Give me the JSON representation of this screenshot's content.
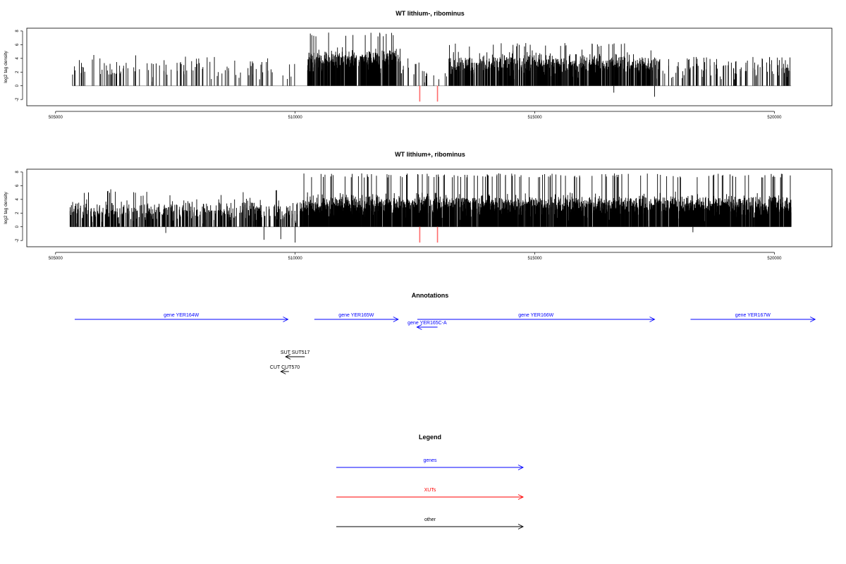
{
  "colors": {
    "gene": "#0000ff",
    "xut": "#ff0000",
    "other": "#000000",
    "negative_highlight": "#ff6b6b",
    "bar": "#000000",
    "baseline": "#9a9a9a"
  },
  "chart_data": [
    {
      "type": "bar",
      "title": "WT lithium-, ribominus",
      "ylabel": "log2 tag density",
      "xlim": [
        504400,
        521200
      ],
      "ylim": [
        -2.5,
        8.2
      ],
      "x_ticks": [
        "505000",
        "510000",
        "515000",
        "520000"
      ],
      "y_ticks": [
        "-2",
        "0",
        "2",
        "4",
        "6",
        "8"
      ],
      "signal_segments": [
        {
          "from": 505350,
          "to": 510000,
          "density": 0.035,
          "mean": 2.5,
          "max": 4.5
        },
        {
          "from": 510250,
          "to": 512200,
          "density": 0.35,
          "mean": 3.6,
          "max": 7.8
        },
        {
          "from": 512200,
          "to": 513200,
          "density": 0.03,
          "mean": 2.0,
          "max": 4.5
        },
        {
          "from": 513200,
          "to": 517600,
          "density": 0.25,
          "mean": 3.1,
          "max": 6.3
        },
        {
          "from": 517600,
          "to": 520350,
          "density": 0.06,
          "mean": 2.6,
          "max": 4.2
        }
      ],
      "negative_red": [
        {
          "x": 512600,
          "y": -2.3
        },
        {
          "x": 512970,
          "y": -2.3
        }
      ],
      "negative_black": [
        {
          "x": 516650,
          "y": -1.0
        },
        {
          "x": 517500,
          "y": -1.6
        }
      ]
    },
    {
      "type": "bar",
      "title": "WT lithium+, ribominus",
      "ylabel": "log2 tag density",
      "xlim": [
        504400,
        521200
      ],
      "ylim": [
        -2.5,
        8.2
      ],
      "x_ticks": [
        "505000",
        "510000",
        "515000",
        "520000"
      ],
      "y_ticks": [
        "-2",
        "0",
        "2",
        "4",
        "6",
        "8"
      ],
      "signal_segments": [
        {
          "from": 505300,
          "to": 510100,
          "density": 0.14,
          "mean": 2.4,
          "max": 5.5
        },
        {
          "from": 510100,
          "to": 520350,
          "density": 0.42,
          "mean": 2.9,
          "max": 7.8
        }
      ],
      "negative_red": [
        {
          "x": 512600,
          "y": -2.3
        },
        {
          "x": 512970,
          "y": -2.3
        }
      ],
      "negative_black": [
        {
          "x": 507300,
          "y": -0.9
        },
        {
          "x": 509350,
          "y": -1.9
        },
        {
          "x": 509700,
          "y": -1.8
        },
        {
          "x": 510000,
          "y": -2.3
        },
        {
          "x": 518300,
          "y": -0.8
        }
      ]
    }
  ],
  "annotations": {
    "title": "Annotations",
    "items": [
      {
        "label": "gene YER164W",
        "start": 505400,
        "end": 509850,
        "strand": "+",
        "type": "gene",
        "row": 0
      },
      {
        "label": "gene YER165W",
        "start": 510400,
        "end": 512150,
        "strand": "+",
        "type": "gene",
        "row": 0
      },
      {
        "label": "gene YER165C-A",
        "start": 512970,
        "end": 512540,
        "strand": "-",
        "type": "gene",
        "row": 1
      },
      {
        "label": "gene YER166W",
        "start": 512550,
        "end": 517500,
        "strand": "+",
        "type": "gene",
        "row": 0
      },
      {
        "label": "gene YER167W",
        "start": 518250,
        "end": 520850,
        "strand": "+",
        "type": "gene",
        "row": 0
      },
      {
        "label": "SUT SUT517",
        "start": 510200,
        "end": 509800,
        "strand": "-",
        "type": "other",
        "row": 2
      },
      {
        "label": "CUT CUT570",
        "start": 509870,
        "end": 509700,
        "strand": "-",
        "type": "other",
        "row": 3
      }
    ]
  },
  "legend": {
    "title": "Legend",
    "items": [
      {
        "label": "genes",
        "type": "gene"
      },
      {
        "label": "XUTs",
        "type": "xut"
      },
      {
        "label": "other",
        "type": "other"
      }
    ]
  }
}
